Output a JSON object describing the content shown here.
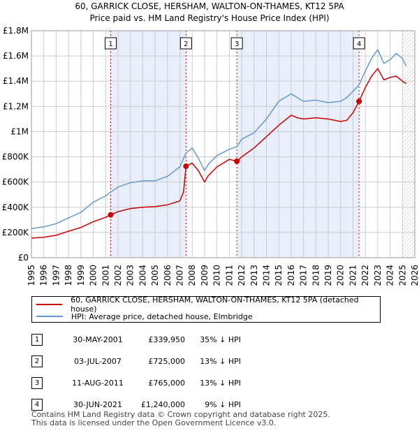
{
  "title_line1": "60, GARRICK CLOSE, HERSHAM, WALTON-ON-THAMES, KT12 5PA",
  "title_line2": "Price paid vs. HM Land Registry's House Price Index (HPI)",
  "colors": {
    "property": "#cc0000",
    "hpi": "#6699cc",
    "shade": "#e8eefa",
    "grid": "#cccccc"
  },
  "chart_data": {
    "type": "line",
    "xlim": [
      1995,
      2026
    ],
    "ylim": [
      0,
      1800000
    ],
    "yticks": [
      0,
      200000,
      400000,
      600000,
      800000,
      1000000,
      1200000,
      1400000,
      1600000,
      1800000
    ],
    "ytick_labels": [
      "£0",
      "£200K",
      "£400K",
      "£600K",
      "£800K",
      "£1M",
      "£1.2M",
      "£1.4M",
      "£1.6M",
      "£1.8M"
    ],
    "xticks": [
      1995,
      1996,
      1997,
      1998,
      1999,
      2000,
      2001,
      2002,
      2003,
      2004,
      2005,
      2006,
      2007,
      2008,
      2009,
      2010,
      2011,
      2012,
      2013,
      2014,
      2015,
      2016,
      2017,
      2018,
      2019,
      2020,
      2021,
      2022,
      2023,
      2024,
      2025,
      2026
    ],
    "xtick_labels": [
      "1995",
      "1996",
      "1997",
      "1998",
      "1999",
      "2000",
      "2001",
      "2002",
      "2003",
      "2004",
      "2005",
      "2006",
      "2007",
      "2008",
      "2009",
      "2010",
      "2011",
      "2012",
      "2013",
      "2014",
      "2015",
      "2016",
      "2017",
      "2018",
      "2019",
      "2020",
      "2021",
      "2022",
      "2023",
      "2024",
      "2025",
      "2026"
    ],
    "shaded_ranges": [
      [
        2001.41,
        2007.5
      ],
      [
        2011.61,
        2021.49
      ]
    ],
    "hatch_from": 2025.0,
    "series": [
      {
        "name": "60, GARRICK CLOSE, HERSHAM, WALTON-ON-THAMES, KT12 5PA (detached house)",
        "x": [
          1995.0,
          1996.0,
          1997.0,
          1998.0,
          1999.0,
          2000.0,
          2001.0,
          2001.41,
          2002.0,
          2003.0,
          2004.0,
          2005.0,
          2006.0,
          2007.0,
          2007.3,
          2007.5,
          2008.0,
          2008.5,
          2009.0,
          2009.3,
          2010.0,
          2011.0,
          2011.61,
          2012.0,
          2013.0,
          2014.0,
          2015.0,
          2016.0,
          2016.5,
          2017.0,
          2018.0,
          2019.0,
          2020.0,
          2020.5,
          2021.0,
          2021.49,
          2022.0,
          2022.5,
          2023.0,
          2023.5,
          2024.0,
          2024.5,
          2025.0,
          2025.3
        ],
        "values": [
          155000,
          162000,
          178000,
          210000,
          240000,
          285000,
          320000,
          339950,
          365000,
          390000,
          400000,
          405000,
          420000,
          450000,
          520000,
          725000,
          750000,
          690000,
          600000,
          650000,
          720000,
          780000,
          765000,
          800000,
          870000,
          960000,
          1050000,
          1130000,
          1110000,
          1100000,
          1110000,
          1100000,
          1080000,
          1090000,
          1150000,
          1240000,
          1350000,
          1440000,
          1500000,
          1410000,
          1430000,
          1440000,
          1400000,
          1380000
        ]
      },
      {
        "name": "HPI: Average price, detached house, Elmbridge",
        "x": [
          1995.0,
          1996.0,
          1997.0,
          1998.0,
          1999.0,
          2000.0,
          2001.0,
          2001.41,
          2002.0,
          2003.0,
          2004.0,
          2005.0,
          2006.0,
          2007.0,
          2007.5,
          2008.0,
          2008.5,
          2009.0,
          2009.3,
          2010.0,
          2011.0,
          2011.61,
          2012.0,
          2013.0,
          2014.0,
          2015.0,
          2016.0,
          2016.5,
          2017.0,
          2018.0,
          2019.0,
          2020.0,
          2020.5,
          2021.0,
          2021.49,
          2022.0,
          2022.5,
          2023.0,
          2023.5,
          2024.0,
          2024.5,
          2025.0,
          2025.3
        ],
        "values": [
          230000,
          245000,
          270000,
          315000,
          360000,
          440000,
          490000,
          520000,
          560000,
          595000,
          610000,
          610000,
          645000,
          720000,
          830000,
          870000,
          790000,
          690000,
          740000,
          810000,
          860000,
          880000,
          940000,
          990000,
          1100000,
          1240000,
          1300000,
          1270000,
          1240000,
          1250000,
          1230000,
          1240000,
          1270000,
          1320000,
          1370000,
          1480000,
          1580000,
          1650000,
          1540000,
          1570000,
          1620000,
          1580000,
          1520000
        ]
      }
    ],
    "markers": [
      {
        "label": "1",
        "x": 2001.41,
        "value": 339950
      },
      {
        "label": "2",
        "x": 2007.5,
        "value": 725000
      },
      {
        "label": "3",
        "x": 2011.61,
        "value": 765000
      },
      {
        "label": "4",
        "x": 2021.49,
        "value": 1240000
      }
    ]
  },
  "legend": {
    "property_label": "60, GARRICK CLOSE, HERSHAM, WALTON-ON-THAMES, KT12 5PA (detached house)",
    "hpi_label": "HPI: Average price, detached house, Elmbridge"
  },
  "sales": [
    {
      "num": "1",
      "date": "30-MAY-2001",
      "price": "£339,950",
      "hpi": "35% ↓ HPI"
    },
    {
      "num": "2",
      "date": "03-JUL-2007",
      "price": "£725,000",
      "hpi": "13% ↓ HPI"
    },
    {
      "num": "3",
      "date": "11-AUG-2011",
      "price": "£765,000",
      "hpi": "13% ↓ HPI"
    },
    {
      "num": "4",
      "date": "30-JUN-2021",
      "price": "£1,240,000",
      "hpi": "9% ↓ HPI"
    }
  ],
  "footer_line1": "Contains HM Land Registry data © Crown copyright and database right 2025.",
  "footer_line2": "This data is licensed under the Open Government Licence v3.0."
}
